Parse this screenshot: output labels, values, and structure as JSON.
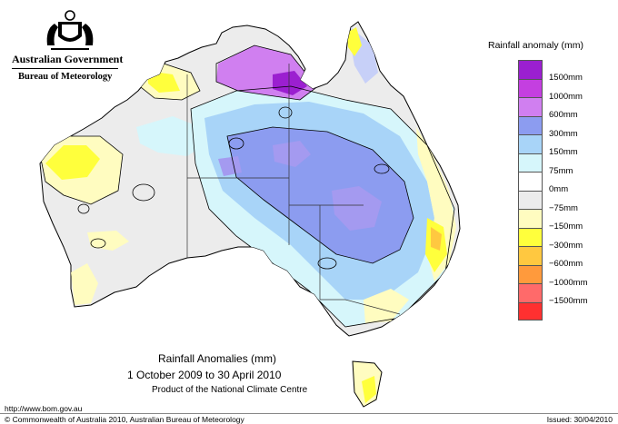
{
  "header": {
    "government": "Australian Government",
    "agency": "Bureau of Meteorology"
  },
  "legend": {
    "title": "Rainfall anomaly (mm)",
    "items": [
      {
        "label": "1500mm",
        "color": "#9b1fd0"
      },
      {
        "label": "1000mm",
        "color": "#c43fe0"
      },
      {
        "label": "600mm",
        "color": "#d07ff0"
      },
      {
        "label": "300mm",
        "color": "#8c9cf0"
      },
      {
        "label": "150mm",
        "color": "#a8d4f8"
      },
      {
        "label": "75mm",
        "color": "#d6f6fb"
      },
      {
        "label": "0mm",
        "color": "#ffffff"
      },
      {
        "label": "−75mm",
        "color": "#ececec"
      },
      {
        "label": "−150mm",
        "color": "#fffcc0"
      },
      {
        "label": "−300mm",
        "color": "#ffff3c"
      },
      {
        "label": "−600mm",
        "color": "#ffc840"
      },
      {
        "label": "−1000mm",
        "color": "#ff9a3c"
      },
      {
        "label": "−1500mm",
        "color": "#ff6a6a"
      },
      {
        "label": "",
        "color": "#ff3030"
      }
    ]
  },
  "caption": {
    "title": "Rainfall Anomalies (mm)",
    "period": "1 October 2009 to 30 April 2010",
    "product": "Product of the National Climate Centre"
  },
  "footer": {
    "url": "http://www.bom.gov.au",
    "copyright": "© Commonwealth of Australia 2010, Australian Bureau of Meteorology",
    "issued": "Issued: 30/04/2010"
  }
}
